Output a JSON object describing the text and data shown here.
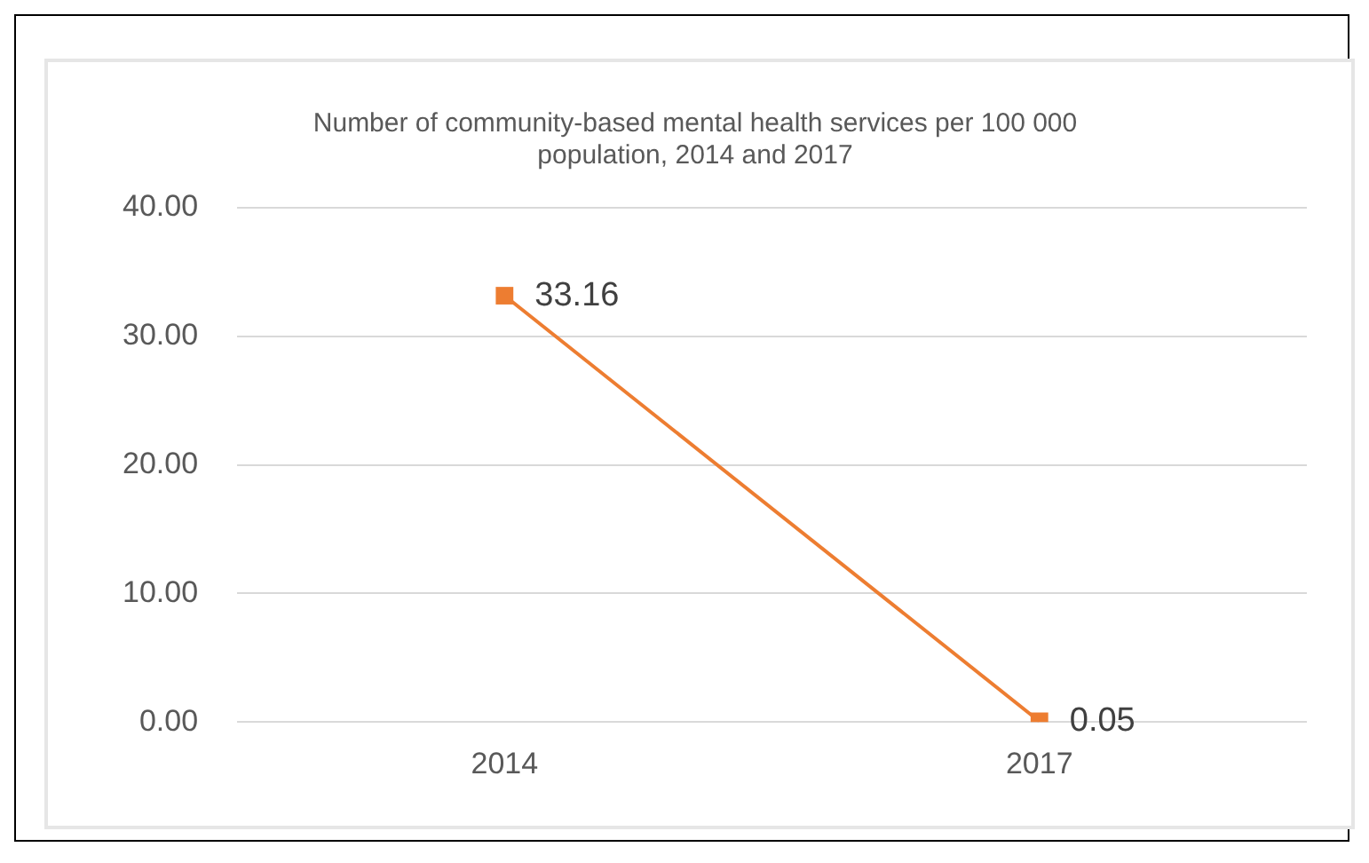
{
  "chart_data": {
    "type": "line",
    "title": "Number of community-based mental health services per 100 000 population, 2014 and 2017",
    "categories": [
      "2014",
      "2017"
    ],
    "series": [
      {
        "color": "#ed7d31",
        "values": [
          33.16,
          0.05
        ]
      }
    ],
    "ylim": [
      0,
      40
    ],
    "yticks": [
      {
        "value": 0,
        "label": "0.00"
      },
      {
        "value": 10,
        "label": "10.00"
      },
      {
        "value": 20,
        "label": "20.00"
      },
      {
        "value": 30,
        "label": "30.00"
      },
      {
        "value": 40,
        "label": "40.00"
      }
    ],
    "grid": "y",
    "legend": false,
    "marker": "square",
    "line_style": "solid",
    "data_labels": true
  }
}
